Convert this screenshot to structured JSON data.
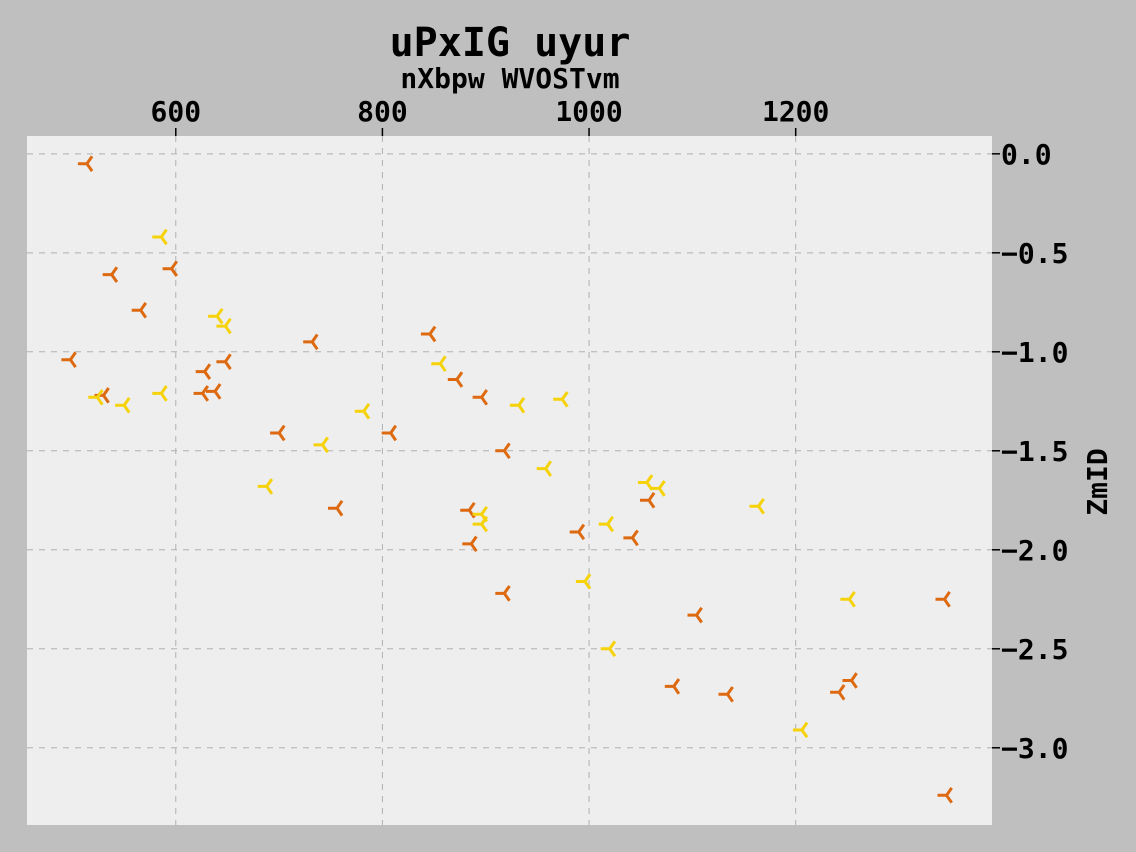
{
  "chart_data": {
    "type": "scatter",
    "title": "uPxIG uyur",
    "xlabel": "nXbpw WVOSTvm",
    "ylabel": "ZmID",
    "x_axis_position": "top",
    "y_axis_position": "right",
    "grid": true,
    "grid_style": "dashed",
    "xlim": [
      456,
      1390
    ],
    "ylim": [
      -3.39,
      0.09
    ],
    "x_ticks": [
      600,
      800,
      1000,
      1200
    ],
    "x_tick_labels": [
      "600",
      "800",
      "1000",
      "1200"
    ],
    "y_ticks": [
      0.0,
      -0.5,
      -1.0,
      -1.5,
      -2.0,
      -2.5,
      -3.0
    ],
    "y_tick_labels": [
      "0.0",
      "−0.5",
      "−1.0",
      "−1.5",
      "−2.0",
      "−2.5",
      "−3.0"
    ],
    "marker": "tri",
    "colors": {
      "page_background": "#bfbfbf",
      "plot_background": "#eeeeee",
      "grid": "#b0b0b0",
      "text": "#000000"
    },
    "series": [
      {
        "color": "#dd6a10",
        "points": [
          [
            514,
            -0.05
          ],
          [
            538,
            -0.61
          ],
          [
            566,
            -0.79
          ],
          [
            596,
            -0.58
          ],
          [
            498,
            -1.04
          ],
          [
            530,
            -1.22
          ],
          [
            628,
            -1.1
          ],
          [
            648,
            -1.05
          ],
          [
            626,
            -1.21
          ],
          [
            638,
            -1.2
          ],
          [
            700,
            -1.41
          ],
          [
            732,
            -0.95
          ],
          [
            756,
            -1.79
          ],
          [
            808,
            -1.41
          ],
          [
            846,
            -0.91
          ],
          [
            872,
            -1.14
          ],
          [
            896,
            -1.23
          ],
          [
            884,
            -1.8
          ],
          [
            886,
            -1.97
          ],
          [
            918,
            -1.5
          ],
          [
            918,
            -2.22
          ],
          [
            990,
            -1.91
          ],
          [
            1042,
            -1.94
          ],
          [
            1058,
            -1.75
          ],
          [
            1082,
            -2.69
          ],
          [
            1104,
            -2.33
          ],
          [
            1134,
            -2.73
          ],
          [
            1242,
            -2.72
          ],
          [
            1254,
            -2.66
          ],
          [
            1344,
            -2.25
          ],
          [
            1346,
            -3.24
          ]
        ]
      },
      {
        "color": "#f5d20a",
        "points": [
          [
            586,
            -0.42
          ],
          [
            640,
            -0.82
          ],
          [
            648,
            -0.87
          ],
          [
            586,
            -1.21
          ],
          [
            524,
            -1.23
          ],
          [
            550,
            -1.27
          ],
          [
            688,
            -1.68
          ],
          [
            742,
            -1.47
          ],
          [
            782,
            -1.3
          ],
          [
            856,
            -1.06
          ],
          [
            932,
            -1.27
          ],
          [
            974,
            -1.24
          ],
          [
            896,
            -1.82
          ],
          [
            896,
            -1.87
          ],
          [
            958,
            -1.59
          ],
          [
            1018,
            -1.87
          ],
          [
            1056,
            -1.66
          ],
          [
            1068,
            -1.69
          ],
          [
            996,
            -2.16
          ],
          [
            1020,
            -2.5
          ],
          [
            1164,
            -1.78
          ],
          [
            1252,
            -2.25
          ],
          [
            1206,
            -2.91
          ]
        ]
      }
    ]
  }
}
